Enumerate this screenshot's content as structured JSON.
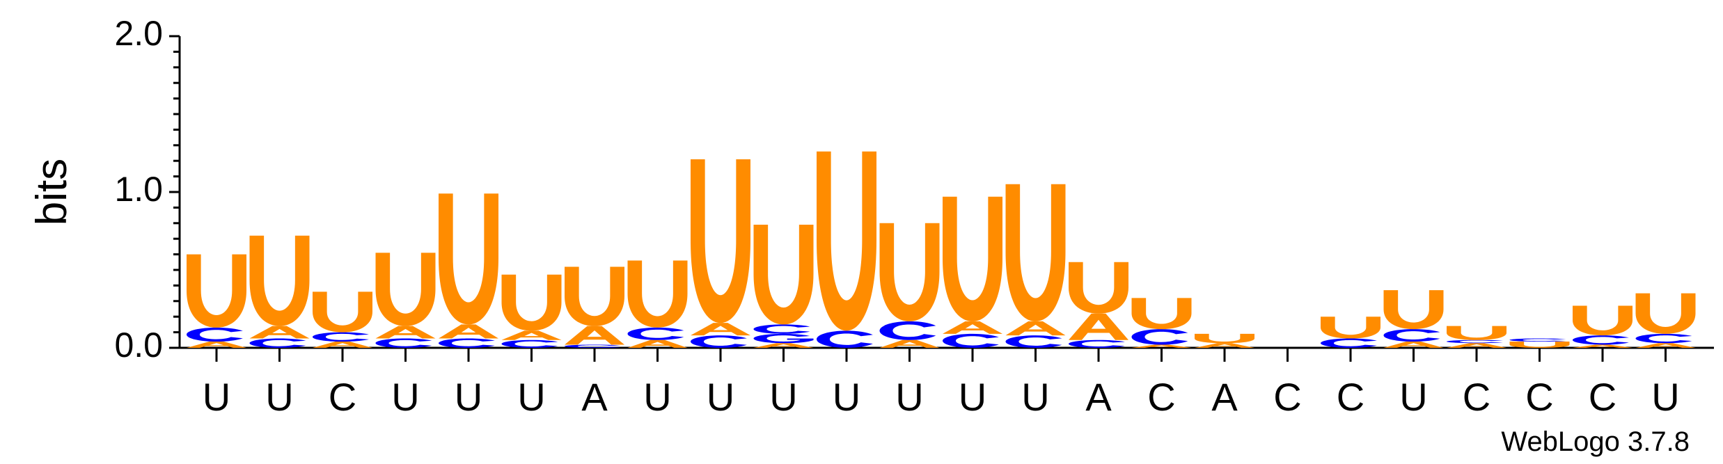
{
  "chart_data": {
    "type": "sequence-logo",
    "ylabel": "bits",
    "ylim": [
      0,
      2
    ],
    "yticks": [
      "0.0",
      "1.0",
      "2.0"
    ],
    "minor_tick_step": 0.1,
    "credit": "WebLogo 3.7.8",
    "colors": {
      "U": "#ff8c00",
      "A": "#ff8c00",
      "C": "#0000ff",
      "G": "#0000ff"
    },
    "positions": [
      {
        "label": "U",
        "stack": [
          [
            "A",
            0.04
          ],
          [
            "C",
            0.09
          ],
          [
            "U",
            0.47
          ]
        ]
      },
      {
        "label": "U",
        "stack": [
          [
            "C",
            0.06
          ],
          [
            "A",
            0.08
          ],
          [
            "U",
            0.58
          ]
        ]
      },
      {
        "label": "C",
        "stack": [
          [
            "A",
            0.04
          ],
          [
            "C",
            0.06
          ],
          [
            "U",
            0.26
          ]
        ]
      },
      {
        "label": "U",
        "stack": [
          [
            "C",
            0.06
          ],
          [
            "A",
            0.08
          ],
          [
            "U",
            0.47
          ]
        ]
      },
      {
        "label": "U",
        "stack": [
          [
            "C",
            0.06
          ],
          [
            "A",
            0.09
          ],
          [
            "U",
            0.84
          ]
        ]
      },
      {
        "label": "U",
        "stack": [
          [
            "C",
            0.05
          ],
          [
            "A",
            0.06
          ],
          [
            "U",
            0.36
          ]
        ]
      },
      {
        "label": "A",
        "stack": [
          [
            "C",
            0.02
          ],
          [
            "A",
            0.12
          ],
          [
            "U",
            0.38
          ]
        ]
      },
      {
        "label": "U",
        "stack": [
          [
            "A",
            0.05
          ],
          [
            "C",
            0.08
          ],
          [
            "U",
            0.43
          ]
        ]
      },
      {
        "label": "U",
        "stack": [
          [
            "C",
            0.08
          ],
          [
            "A",
            0.08
          ],
          [
            "U",
            1.05
          ]
        ]
      },
      {
        "label": "U",
        "stack": [
          [
            "A",
            0.03
          ],
          [
            "G",
            0.06
          ],
          [
            "C",
            0.06
          ],
          [
            "U",
            0.64
          ]
        ]
      },
      {
        "label": "U",
        "stack": [
          [
            "C",
            0.11
          ],
          [
            "U",
            1.15
          ]
        ]
      },
      {
        "label": "U",
        "stack": [
          [
            "A",
            0.05
          ],
          [
            "C",
            0.12
          ],
          [
            "U",
            0.63
          ]
        ]
      },
      {
        "label": "U",
        "stack": [
          [
            "C",
            0.09
          ],
          [
            "A",
            0.08
          ],
          [
            "U",
            0.8
          ]
        ]
      },
      {
        "label": "U",
        "stack": [
          [
            "C",
            0.08
          ],
          [
            "A",
            0.09
          ],
          [
            "U",
            0.88
          ]
        ]
      },
      {
        "label": "A",
        "stack": [
          [
            "C",
            0.05
          ],
          [
            "A",
            0.17
          ],
          [
            "U",
            0.33
          ]
        ]
      },
      {
        "label": "C",
        "stack": [
          [
            "A",
            0.02
          ],
          [
            "C",
            0.1
          ],
          [
            "U",
            0.2
          ]
        ]
      },
      {
        "label": "A",
        "stack": [
          [
            "A",
            0.03
          ],
          [
            "U",
            0.06
          ]
        ]
      },
      {
        "label": "C",
        "stack": []
      },
      {
        "label": "C",
        "stack": [
          [
            "C",
            0.06
          ],
          [
            "U",
            0.14
          ]
        ]
      },
      {
        "label": "U",
        "stack": [
          [
            "A",
            0.04
          ],
          [
            "C",
            0.08
          ],
          [
            "U",
            0.25
          ]
        ]
      },
      {
        "label": "C",
        "stack": [
          [
            "A",
            0.03
          ],
          [
            "C",
            0.02
          ],
          [
            "U",
            0.09
          ]
        ]
      },
      {
        "label": "C",
        "stack": [
          [
            "U",
            0.04
          ],
          [
            "C",
            0.02
          ]
        ]
      },
      {
        "label": "C",
        "stack": [
          [
            "A",
            0.02
          ],
          [
            "C",
            0.06
          ],
          [
            "U",
            0.19
          ]
        ]
      },
      {
        "label": "U",
        "stack": [
          [
            "A",
            0.03
          ],
          [
            "C",
            0.06
          ],
          [
            "U",
            0.26
          ]
        ]
      }
    ]
  }
}
